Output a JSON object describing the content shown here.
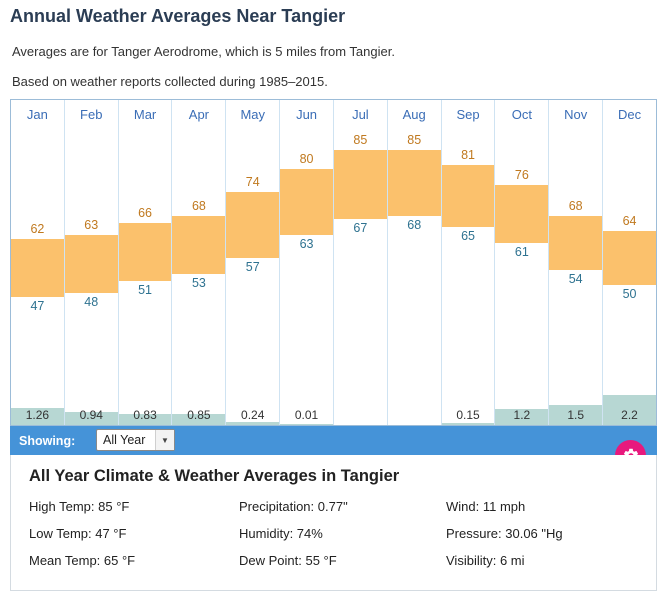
{
  "header": {
    "title": "Annual Weather Averages Near Tangier",
    "subtitle1": "Averages are for Tanger Aerodrome, which is 5 miles from Tangier.",
    "subtitle2": "Based on weather reports collected during 1985–2015."
  },
  "chart_data": {
    "type": "bar",
    "title": "Annual Weather Averages Near Tangier",
    "categories": [
      "Jan",
      "Feb",
      "Mar",
      "Apr",
      "May",
      "Jun",
      "Jul",
      "Aug",
      "Sep",
      "Oct",
      "Nov",
      "Dec"
    ],
    "series": [
      {
        "name": "High Temp (°F)",
        "values": [
          62,
          63,
          66,
          68,
          74,
          80,
          85,
          85,
          81,
          76,
          68,
          64
        ]
      },
      {
        "name": "Low Temp (°F)",
        "values": [
          47,
          48,
          51,
          53,
          57,
          63,
          67,
          68,
          65,
          61,
          54,
          50
        ]
      },
      {
        "name": "Precipitation (in)",
        "values": [
          1.26,
          0.94,
          0.83,
          0.85,
          0.24,
          0.01,
          null,
          null,
          0.15,
          1.2,
          1.5,
          2.2
        ]
      }
    ],
    "ylim": [
      40,
      94
    ],
    "grid": "vertical-only",
    "legend": "none",
    "colors": {
      "temp_bar": "#fbc16c",
      "precip_bar": "#b7d7d3",
      "month_label": "#3a6db6",
      "high_label": "#c0791f",
      "low_label": "#2e7290",
      "precip_label": "#333333"
    }
  },
  "showing_bar": {
    "label": "Showing:",
    "dropdown_value": "All Year"
  },
  "summary": {
    "heading": "All Year Climate & Weather Averages in Tangier",
    "columns": [
      [
        "High Temp: 85 °F",
        "Low Temp: 47 °F",
        "Mean Temp: 65 °F"
      ],
      [
        "Precipitation: 0.77\"",
        "Humidity: 74%",
        "Dew Point: 55 °F"
      ],
      [
        "Wind: 11 mph",
        "Pressure: 30.06 \"Hg",
        "Visibility: 6 mi"
      ]
    ]
  }
}
